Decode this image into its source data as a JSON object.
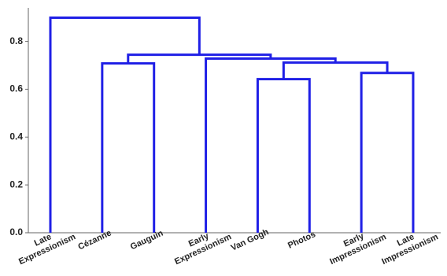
{
  "chart_data": {
    "type": "dendrogram",
    "leaves": [
      "Late\nExpressionism",
      "Cézanne",
      "Gauguin",
      "Early\nExpressionism",
      "Van Gogh",
      "Photos",
      "Early\nImpressionism",
      "Late\nImpressionism"
    ],
    "merges": [
      {
        "children": [
          1,
          2
        ],
        "height": 0.708
      },
      {
        "children": [
          4,
          5
        ],
        "height": 0.642
      },
      {
        "children": [
          6,
          7
        ],
        "height": 0.668
      },
      {
        "children": [
          9,
          10
        ],
        "height": 0.711
      },
      {
        "children": [
          3,
          11
        ],
        "height": 0.728
      },
      {
        "children": [
          8,
          12
        ],
        "height": 0.744
      },
      {
        "children": [
          0,
          13
        ],
        "height": 0.899
      }
    ],
    "color": "#1f1fe6",
    "ylim": [
      0,
      0.94
    ],
    "yticks": [
      {
        "value": 0,
        "label": "0.0"
      },
      {
        "value": 0.2,
        "label": "0.2"
      },
      {
        "value": 0.4,
        "label": "0.4"
      },
      {
        "value": 0.6,
        "label": "0.6"
      },
      {
        "value": 0.8,
        "label": "0.8"
      }
    ]
  }
}
